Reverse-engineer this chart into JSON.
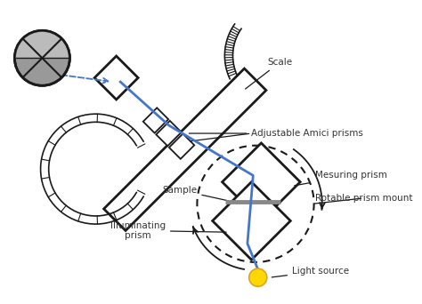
{
  "bg_color": "#ffffff",
  "line_color": "#1a1a1a",
  "blue_color": "#4477cc",
  "gray_color": "#888888",
  "text_color": "#333333",
  "labels": {
    "scale": "Scale",
    "amici": "Adjustable Amici prisms",
    "measuring": "Mesuring prism",
    "rotable": "Rotable prism mount",
    "sample": "Sample",
    "illuminating": "Illuminating\nprism",
    "light": "Light source"
  },
  "figsize": [
    4.74,
    3.42
  ],
  "dpi": 100
}
